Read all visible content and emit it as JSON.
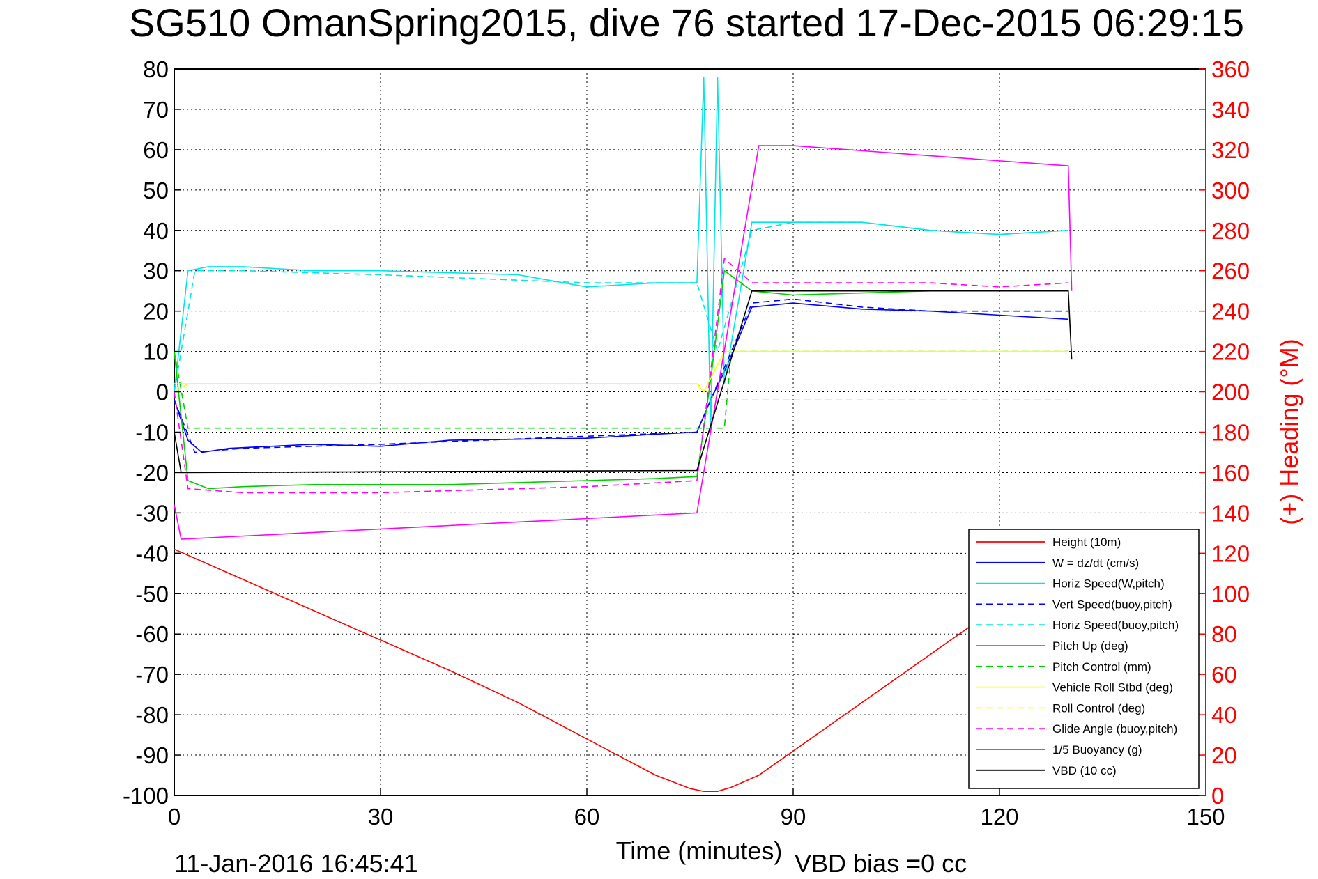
{
  "chart_data": {
    "type": "line",
    "title": "SG510 OmanSpring2015, dive 76 started 17-Dec-2015 06:29:15",
    "xlabel": "Time (minutes)",
    "ylabel_left": "",
    "ylabel_right": "(+) Heading (°M)",
    "xlim": [
      0,
      150
    ],
    "ylim": [
      -100,
      80
    ],
    "ylim_right": [
      0,
      360
    ],
    "x_ticks": [
      "0",
      "30",
      "60",
      "90",
      "120",
      "150"
    ],
    "y_ticks": [
      "-100",
      "-90",
      "-80",
      "-70",
      "-60",
      "-50",
      "-40",
      "-30",
      "-20",
      "-10",
      "0",
      "10",
      "20",
      "30",
      "40",
      "50",
      "60",
      "70",
      "80"
    ],
    "y_right_ticks": [
      "0",
      "20",
      "40",
      "60",
      "80",
      "100",
      "120",
      "140",
      "160",
      "180",
      "200",
      "220",
      "240",
      "260",
      "280",
      "300",
      "320",
      "340",
      "360"
    ],
    "grid": true,
    "legend_position": "bottom-right",
    "footer_left": "11-Jan-2016 16:45:41",
    "footer_right": "VBD bias =0 cc",
    "series": [
      {
        "name": "Height (10m)",
        "color": "#ff0000",
        "dash": "solid",
        "x": [
          0,
          10,
          20,
          30,
          40,
          50,
          60,
          70,
          75,
          77,
          79,
          81,
          85,
          90,
          100,
          110,
          120,
          130
        ],
        "y": [
          -39,
          -46.5,
          -54,
          -61.5,
          -69,
          -77,
          -86,
          -95,
          -98.3,
          -99,
          -99,
          -98,
          -95,
          -89,
          -77,
          -65,
          -53,
          -40
        ]
      },
      {
        "name": "W = dz/dt (cm/s)",
        "color": "#0000ff",
        "dash": "solid",
        "x": [
          0,
          2,
          4,
          8,
          20,
          30,
          40,
          60,
          70,
          76,
          78,
          80,
          84,
          90,
          100,
          110,
          120,
          130
        ],
        "y": [
          -2,
          -12,
          -15,
          -14,
          -13,
          -13.5,
          -12,
          -11.5,
          -10.5,
          -10,
          -2,
          5,
          21,
          22,
          20.5,
          20,
          19,
          18
        ]
      },
      {
        "name": "Horiz Speed(W,pitch)",
        "color": "#00e6e6",
        "dash": "solid",
        "x": [
          0,
          2,
          5,
          10,
          20,
          30,
          40,
          50,
          60,
          70,
          76,
          77,
          78,
          79,
          80,
          84,
          90,
          100,
          110,
          120,
          130
        ],
        "y": [
          0,
          30,
          31,
          31,
          30,
          30,
          29.5,
          29,
          26,
          27,
          27,
          78,
          -10,
          78,
          2,
          42,
          42,
          42,
          40,
          39,
          40
        ]
      },
      {
        "name": "Vert Speed(buoy,pitch)",
        "color": "#0000ff",
        "dash": "dashed",
        "x": [
          0,
          3,
          10,
          30,
          60,
          76,
          79,
          84,
          90,
          100,
          110,
          120,
          130
        ],
        "y": [
          -2,
          -15,
          -14,
          -13,
          -11,
          -10,
          2,
          22,
          23,
          21,
          20,
          20,
          20
        ]
      },
      {
        "name": "Horiz Speed(buoy,pitch)",
        "color": "#00e6e6",
        "dash": "dashed",
        "x": [
          0,
          3,
          10,
          30,
          60,
          76,
          79,
          84,
          90,
          100,
          110,
          120,
          130
        ],
        "y": [
          0,
          30,
          30,
          29,
          27,
          27,
          10,
          40,
          42,
          42,
          40,
          39,
          40
        ]
      },
      {
        "name": "Pitch Up (deg)",
        "color": "#00d000",
        "dash": "solid",
        "x": [
          0,
          2,
          5,
          10,
          20,
          30,
          40,
          60,
          70,
          76,
          78,
          80,
          84,
          90,
          100,
          110,
          120,
          130
        ],
        "y": [
          10,
          -22,
          -24,
          -23.5,
          -23,
          -23,
          -23,
          -22,
          -21.5,
          -21,
          3,
          30,
          25,
          24,
          24.5,
          25,
          25,
          25
        ]
      },
      {
        "name": "Pitch Control (mm)",
        "color": "#00d000",
        "dash": "dashed",
        "x": [
          0,
          2,
          5,
          80,
          81,
          130
        ],
        "y": [
          10,
          -9,
          -9,
          -9,
          10,
          10
        ]
      },
      {
        "name": "Vehicle Roll Stbd (deg)",
        "color": "#ffff00",
        "dash": "solid",
        "x": [
          0,
          2,
          10,
          30,
          60,
          76,
          77,
          80,
          90,
          100,
          110,
          120,
          130
        ],
        "y": [
          2,
          2,
          2,
          2,
          2,
          2,
          0,
          10,
          10,
          10,
          10,
          10,
          10
        ]
      },
      {
        "name": "Roll Control (deg)",
        "color": "#ffff00",
        "dash": "dashed",
        "x": [
          0,
          2,
          76,
          79,
          130
        ],
        "y": [
          0,
          2,
          2,
          -2,
          -2
        ]
      },
      {
        "name": "Glide Angle (buoy,pitch)",
        "color": "#ff00ff",
        "dash": "dashed",
        "x": [
          0,
          2,
          10,
          30,
          60,
          76,
          78,
          80,
          84,
          90,
          100,
          110,
          120,
          130
        ],
        "y": [
          0,
          -24,
          -25,
          -25,
          -23.5,
          -22,
          5,
          33,
          27,
          27,
          27,
          27,
          26,
          27
        ]
      },
      {
        "name": "1/5 Buoyancy (g)",
        "color": "#ff00ff",
        "dash": "solid",
        "x": [
          0,
          1,
          76,
          85,
          90,
          130,
          130.5
        ],
        "y": [
          -28,
          -36.5,
          -30,
          61,
          61,
          56,
          25
        ]
      },
      {
        "name": "VBD (10 cc)",
        "color": "#000000",
        "dash": "solid",
        "x": [
          0,
          1,
          76,
          84,
          130,
          130.5
        ],
        "y": [
          -10,
          -20,
          -19.5,
          25,
          25,
          8
        ]
      }
    ]
  }
}
